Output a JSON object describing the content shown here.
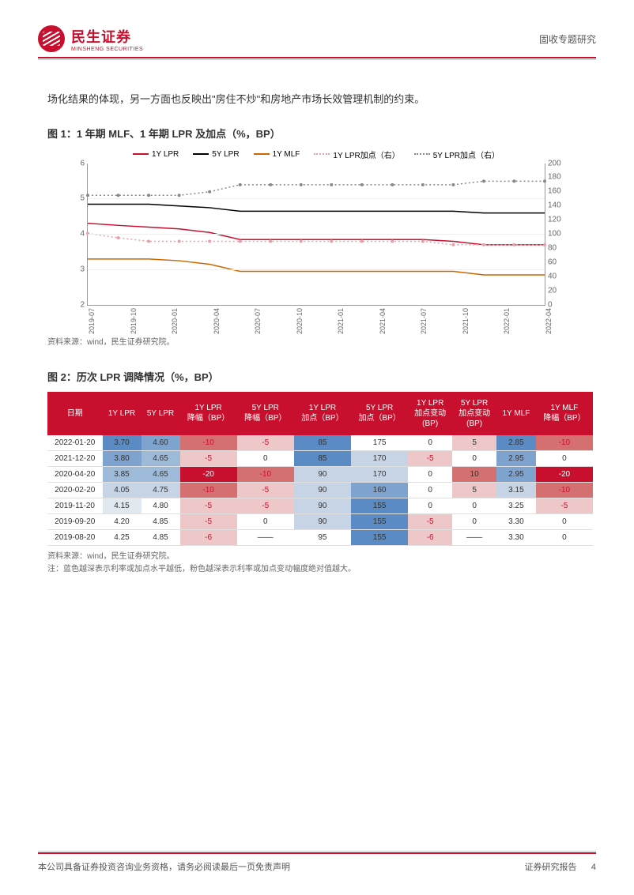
{
  "header": {
    "logo_cn": "民生证券",
    "logo_en": "MINSHENG SECURITIES",
    "right_text": "固收专题研究"
  },
  "body_text": "场化结果的体现，另一方面也反映出\"房住不炒\"和房地产市场长效管理机制的约束。",
  "figure1": {
    "title": "图 1：1 年期 MLF、1 年期 LPR 及加点（%，BP）",
    "source": "资料来源：wind，民生证券研究院。",
    "type": "line",
    "legend": [
      {
        "label": "1Y LPR",
        "color": "#c8102e",
        "style": "solid"
      },
      {
        "label": "5Y LPR",
        "color": "#000000",
        "style": "solid"
      },
      {
        "label": "1Y MLF",
        "color": "#cc6600",
        "style": "solid"
      },
      {
        "label": "1Y LPR加点（右）",
        "color": "#e8a0a8",
        "style": "dotted",
        "marker": "circle"
      },
      {
        "label": "5Y LPR加点（右）",
        "color": "#888888",
        "style": "dotted",
        "marker": "circle"
      }
    ],
    "ylim_left": [
      2,
      6
    ],
    "ytick_step_left": 1,
    "ylim_right": [
      0,
      200
    ],
    "ytick_step_right": 20,
    "x_labels": [
      "2019-07",
      "2019-10",
      "2020-01",
      "2020-04",
      "2020-07",
      "2020-10",
      "2021-01",
      "2021-04",
      "2021-07",
      "2021-10",
      "2022-01",
      "2022-04"
    ],
    "series": {
      "1Y_LPR": [
        4.31,
        4.25,
        4.2,
        4.15,
        4.05,
        3.85,
        3.85,
        3.85,
        3.85,
        3.85,
        3.85,
        3.85,
        3.8,
        3.7,
        3.7,
        3.7
      ],
      "5Y_LPR": [
        4.85,
        4.85,
        4.85,
        4.8,
        4.75,
        4.65,
        4.65,
        4.65,
        4.65,
        4.65,
        4.65,
        4.65,
        4.65,
        4.6,
        4.6,
        4.6
      ],
      "1Y_MLF": [
        3.3,
        3.3,
        3.3,
        3.25,
        3.15,
        2.95,
        2.95,
        2.95,
        2.95,
        2.95,
        2.95,
        2.95,
        2.95,
        2.85,
        2.85,
        2.85
      ],
      "1Y_LPR_spread": [
        101,
        95,
        90,
        90,
        90,
        90,
        90,
        90,
        90,
        90,
        90,
        90,
        85,
        85,
        85,
        85
      ],
      "5Y_LPR_spread": [
        155,
        155,
        155,
        155,
        160,
        170,
        170,
        170,
        170,
        170,
        170,
        170,
        170,
        175,
        175,
        175
      ]
    },
    "background_color": "#ffffff",
    "grid_color": "#eeeeee",
    "axis_color": "#999999",
    "label_fontsize": 9
  },
  "figure2": {
    "title": "图 2：历次 LPR 调降情况（%，BP）",
    "source": "资料来源：wind，民生证券研究院。",
    "note": "注：蓝色越深表示利率或加点水平越低，粉色越深表示利率或加点变动幅度绝对值越大。",
    "type": "table",
    "header_bg": "#c8102e",
    "header_color": "#ffffff",
    "columns": [
      "日期",
      "1Y LPR",
      "5Y LPR",
      "1Y LPR\n降幅（BP）",
      "5Y LPR\n降幅（BP）",
      "1Y LPR\n加点（BP）",
      "5Y LPR\n加点（BP）",
      "1Y LPR\n加点变动\n(BP)",
      "5Y LPR\n加点变动\n(BP)",
      "1Y MLF",
      "1Y MLF\n降幅（BP）"
    ],
    "rows": [
      [
        "2022-01-20",
        "3.70",
        "4.60",
        "-10",
        "-5",
        "85",
        "175",
        "0",
        "5",
        "2.85",
        "-10"
      ],
      [
        "2021-12-20",
        "3.80",
        "4.65",
        "-5",
        "0",
        "85",
        "170",
        "-5",
        "0",
        "2.95",
        "0"
      ],
      [
        "2020-04-20",
        "3.85",
        "4.65",
        "-20",
        "-10",
        "90",
        "170",
        "0",
        "10",
        "2.95",
        "-20"
      ],
      [
        "2020-02-20",
        "4.05",
        "4.75",
        "-10",
        "-5",
        "90",
        "160",
        "0",
        "5",
        "3.15",
        "-10"
      ],
      [
        "2019-11-20",
        "4.15",
        "4.80",
        "-5",
        "-5",
        "90",
        "155",
        "0",
        "0",
        "3.25",
        "-5"
      ],
      [
        "2019-09-20",
        "4.20",
        "4.85",
        "-5",
        "0",
        "90",
        "155",
        "-5",
        "0",
        "3.30",
        "0"
      ],
      [
        "2019-08-20",
        "4.25",
        "4.85",
        "-6",
        "——",
        "95",
        "155",
        "-6",
        "——",
        "3.30",
        "0"
      ]
    ],
    "cell_colors": [
      [
        null,
        "#5b8bc4",
        "#7fa3cf",
        "#d47070",
        "#eec8c8",
        "#5b8bc4",
        null,
        null,
        "#eec8c8",
        "#5b8bc4",
        "#d47070"
      ],
      [
        null,
        "#7fa3cf",
        "#9dbad9",
        "#eec8c8",
        null,
        "#5b8bc4",
        "#c6d4e6",
        "#eec8c8",
        null,
        "#7fa3cf",
        null
      ],
      [
        null,
        "#9dbad9",
        "#9dbad9",
        "#c8102e",
        "#d47070",
        "#c6d4e6",
        "#c6d4e6",
        null,
        "#d47070",
        "#7fa3cf",
        "#c8102e"
      ],
      [
        null,
        "#c6d4e6",
        "#c6d4e6",
        "#d47070",
        "#eec8c8",
        "#c6d4e6",
        "#7fa3cf",
        null,
        "#eec8c8",
        "#c6d4e6",
        "#d47070"
      ],
      [
        null,
        "#e0e8f0",
        null,
        "#eec8c8",
        "#eec8c8",
        "#c6d4e6",
        "#5b8bc4",
        null,
        null,
        null,
        "#eec8c8"
      ],
      [
        null,
        null,
        null,
        "#eec8c8",
        null,
        "#c6d4e6",
        "#5b8bc4",
        "#eec8c8",
        null,
        null,
        null
      ],
      [
        null,
        null,
        null,
        "#eec8c8",
        null,
        null,
        "#5b8bc4",
        "#eec8c8",
        null,
        null,
        null
      ]
    ],
    "text_colors_red": [
      [
        3,
        4,
        10
      ],
      [
        3,
        7
      ],
      [
        3,
        4,
        10
      ],
      [
        3,
        4,
        10
      ],
      [
        3,
        4,
        10
      ],
      [
        3,
        7
      ],
      [
        3,
        7
      ]
    ],
    "row_border": "#e0e0e0"
  },
  "footer": {
    "left": "本公司具备证券投资咨询业务资格，请务必阅读最后一页免责声明",
    "right": "证券研究报告",
    "page": "4"
  }
}
